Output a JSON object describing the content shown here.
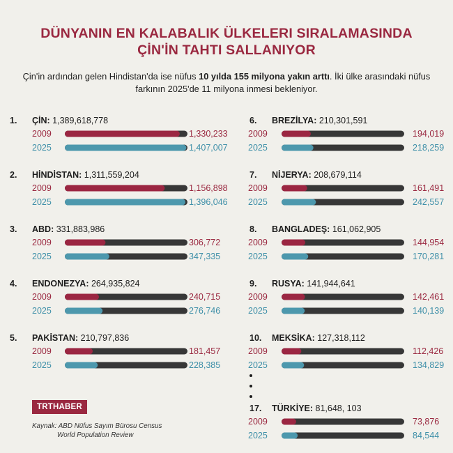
{
  "header": {
    "title_line1": "DÜNYANIN EN KALABALIK ÜLKELERI SIRALAMASINDA",
    "title_line2": "ÇİN'İN TAHTI SALLANIYOR",
    "subtitle_part1": "Çin'in ardından gelen Hindistan'da ise nüfus ",
    "subtitle_bold": "10 yılda 155 milyona yakın arttı",
    "subtitle_part2": ". İki ülke arasındaki nüfus",
    "subtitle_line2": "farkının 2025'de 11 milyona inmesi bekleniyor."
  },
  "colors": {
    "title": "#9a2840",
    "year_2009": "#9a2840",
    "year_2025": "#3e8fa8",
    "bar_2009": "#9b2642",
    "bar_2025": "#4d98ad",
    "track": "#373737",
    "text": "#1d1d1d"
  },
  "chart_data": {
    "type": "bar",
    "orientation": "horizontal",
    "series": [
      {
        "name": "2009"
      },
      {
        "name": "2025"
      }
    ],
    "countries": [
      {
        "rank": "1.",
        "name": "ÇİN:",
        "population": "1,389,618,778",
        "v2009": 1330233,
        "v2025": 1407007,
        "label2009": "1,330,233",
        "label2025": "1,407,007"
      },
      {
        "rank": "2.",
        "name": "HİNDİSTAN:",
        "population": "1,311,559,204",
        "v2009": 1156898,
        "v2025": 1396046,
        "label2009": "1,156,898",
        "label2025": "1,396,046"
      },
      {
        "rank": "3.",
        "name": "ABD:",
        "population": "331,883,986",
        "v2009": 306772,
        "v2025": 347335,
        "label2009": "306,772",
        "label2025": "347,335"
      },
      {
        "rank": "4.",
        "name": "ENDONEZYA:",
        "population": "264,935,824",
        "v2009": 240715,
        "v2025": 276746,
        "label2009": "240,715",
        "label2025": "276,746"
      },
      {
        "rank": "5.",
        "name": "PAKİSTAN:",
        "population": "210,797,836",
        "v2009": 181457,
        "v2025": 228385,
        "label2009": "181,457",
        "label2025": "228,385"
      },
      {
        "rank": "6.",
        "name": "BREZİLYA:",
        "population": "210,301,591",
        "v2009": 194019,
        "v2025": 218259,
        "label2009": "194,019",
        "label2025": "218,259"
      },
      {
        "rank": "7.",
        "name": "NİJERYA:",
        "population": "208,679,114",
        "v2009": 161491,
        "v2025": 242557,
        "label2009": "161,491",
        "label2025": "242,557"
      },
      {
        "rank": "8.",
        "name": "BANGLADEŞ:",
        "population": "161,062,905",
        "v2009": 144954,
        "v2025": 170281,
        "label2009": "144,954",
        "label2025": "170,281"
      },
      {
        "rank": "9.",
        "name": "RUSYA:",
        "population": "141,944,641",
        "v2009": 142461,
        "v2025": 140139,
        "label2009": "142,461",
        "label2025": "140,139"
      },
      {
        "rank": "10.",
        "name": "MEKSİKA:",
        "population": "127,318,112",
        "v2009": 112426,
        "v2025": 134829,
        "label2009": "112,426",
        "label2025": "134,829"
      },
      {
        "rank": "17.",
        "name": "TÜRKİYE:",
        "population": "81,648, 103",
        "v2009": 73876,
        "v2025": 84544,
        "label2009": "73,876",
        "label2025": "84,544"
      }
    ]
  },
  "footer": {
    "logo": "TRTHABER",
    "source_line1": "Kaynak: ABD Nüfus Sayım Bürosu Census",
    "source_line2": "World Population Review"
  }
}
